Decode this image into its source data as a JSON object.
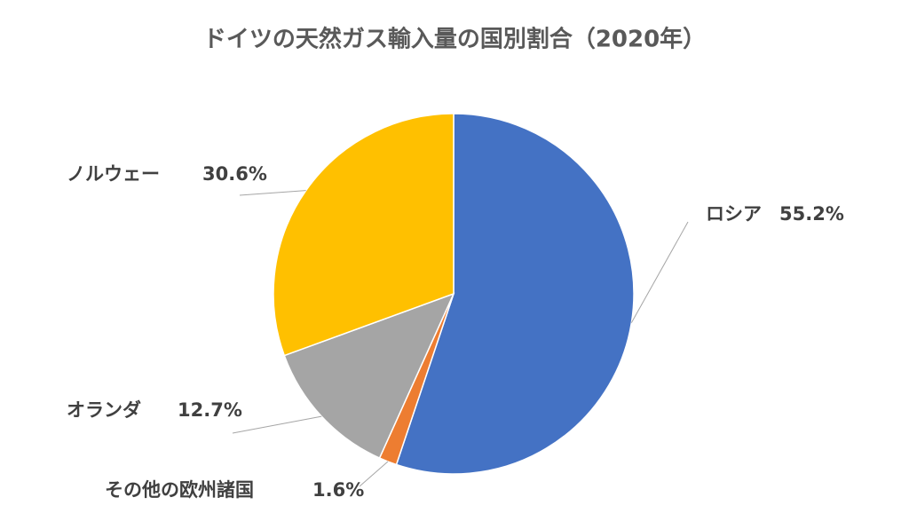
{
  "chart_data": {
    "type": "pie",
    "title": "ドイツの天然ガス輸入量の国別割合（2020年）",
    "categories": [
      "ロシア",
      "その他の欧州諸国",
      "オランダ",
      "ノルウェー"
    ],
    "values": [
      55.2,
      1.6,
      12.7,
      30.6
    ],
    "value_labels": [
      "55.2%",
      "1.6%",
      "12.7%",
      "30.6%"
    ],
    "colors": [
      "#4472c4",
      "#ed7d31",
      "#a5a5a5",
      "#ffc000"
    ]
  }
}
